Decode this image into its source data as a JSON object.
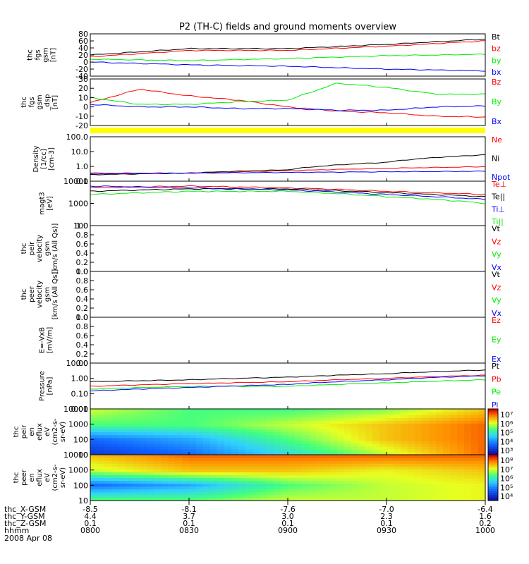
{
  "title": "P2 (TH-C) fields and ground moments overview",
  "date_label": "2008 Apr 08",
  "bottom_axis": {
    "rows": [
      {
        "label": "thc_X-GSM",
        "values": [
          "-8.5",
          "-8.1",
          "-7.6",
          "-7.0",
          "-6.4"
        ]
      },
      {
        "label": "thc_Y-GSM",
        "values": [
          "4.4",
          "3.7",
          "3.0",
          "2.3",
          "1.6"
        ]
      },
      {
        "label": "thc_Z-GSM",
        "values": [
          "0.1",
          "0.1",
          "0.1",
          "0.1",
          "0.2"
        ]
      },
      {
        "label": "hhmm",
        "values": [
          "0800",
          "0830",
          "0900",
          "0930",
          "1000"
        ]
      }
    ]
  },
  "colors": {
    "black": "#000000",
    "red": "#ff0000",
    "green": "#00ee00",
    "blue": "#0000ff",
    "yellow": "#ffff00"
  },
  "panels": [
    {
      "id": "p1",
      "ylabel": [
        "thc",
        "fgs",
        "gsm",
        "[nT]"
      ],
      "scale": "linear",
      "ylim": [
        -40,
        80
      ],
      "ticks": [
        "80",
        "60",
        "40",
        "20",
        "0",
        "-20",
        "-40"
      ],
      "legend": [
        {
          "text": "Bt",
          "color": "black"
        },
        {
          "text": "bz",
          "color": "red"
        },
        {
          "text": "by",
          "color": "green"
        },
        {
          "text": "bx",
          "color": "blue"
        }
      ]
    },
    {
      "id": "p2",
      "ylabel": [
        "thc",
        "fgs",
        "gsm",
        "_dsp",
        "[nT]"
      ],
      "scale": "linear",
      "ylim": [
        -25,
        30
      ],
      "ticks": [
        "30",
        "20",
        "10",
        "0",
        "-10",
        "-20"
      ],
      "legend": [
        {
          "text": "Bz",
          "color": "red"
        },
        {
          "text": "By",
          "color": "green"
        },
        {
          "text": "Bx",
          "color": "blue"
        }
      ]
    },
    {
      "id": "p3",
      "ylabel": [
        "Density",
        "[1/cc]",
        "[cm-3]"
      ],
      "scale": "log",
      "ylim": [
        0.1,
        200
      ],
      "ticks": [
        "100.0",
        "10.0",
        "1.0",
        "0.1"
      ],
      "legend": [
        {
          "text": "Ne",
          "color": "red"
        },
        {
          "text": "Ni",
          "color": "black"
        },
        {
          "text": "Npot",
          "color": "blue"
        }
      ]
    },
    {
      "id": "p4",
      "ylabel": [
        "magt3",
        "[eV]"
      ],
      "scale": "log",
      "ylim": [
        100,
        10000
      ],
      "ticks": [
        "10000",
        "1000",
        "100"
      ],
      "legend": [
        {
          "text": "Te⊥",
          "color": "red"
        },
        {
          "text": "Te||",
          "color": "black"
        },
        {
          "text": "Ti⊥",
          "color": "blue"
        },
        {
          "text": "Ti||",
          "color": "green"
        }
      ]
    },
    {
      "id": "p5",
      "ylabel": [
        "thc",
        "peir",
        "velocity",
        "gsm",
        "[km/s (All Qs)]"
      ],
      "scale": "linear",
      "ylim": [
        0,
        1
      ],
      "ticks": [
        "1.0",
        "0.8",
        "0.6",
        "0.4",
        "0.2",
        "0.0"
      ],
      "legend": [
        {
          "text": "Vt",
          "color": "black"
        },
        {
          "text": "Vz",
          "color": "red"
        },
        {
          "text": "Vy",
          "color": "green"
        },
        {
          "text": "Vx",
          "color": "blue"
        }
      ]
    },
    {
      "id": "p6",
      "ylabel": [
        "thc",
        "peer",
        "velocity",
        "gsm",
        "[km/s (All Qs)]"
      ],
      "scale": "linear",
      "ylim": [
        0,
        1
      ],
      "ticks": [
        "1.0",
        "0.8",
        "0.6",
        "0.4",
        "0.2",
        "0.0"
      ],
      "legend": [
        {
          "text": "Vt",
          "color": "black"
        },
        {
          "text": "Vz",
          "color": "red"
        },
        {
          "text": "Vy",
          "color": "green"
        },
        {
          "text": "Vx",
          "color": "blue"
        }
      ]
    },
    {
      "id": "p7",
      "ylabel": [
        "E=-VxB",
        "[mV/m]"
      ],
      "scale": "linear",
      "ylim": [
        0,
        1
      ],
      "ticks": [
        "1.0",
        "0.8",
        "0.6",
        "0.4",
        "0.2",
        "0.0"
      ],
      "legend": [
        {
          "text": "Ez",
          "color": "red"
        },
        {
          "text": "Ey",
          "color": "green"
        },
        {
          "text": "Ex",
          "color": "blue"
        }
      ]
    },
    {
      "id": "p8",
      "ylabel": [
        "Pressure",
        "[nPa]"
      ],
      "scale": "log",
      "ylim": [
        0.01,
        10
      ],
      "ticks": [
        "10.00",
        "1.00",
        "0.10",
        "0.01"
      ],
      "legend": [
        {
          "text": "Pt",
          "color": "black"
        },
        {
          "text": "Pb",
          "color": "red"
        },
        {
          "text": "Pe",
          "color": "green"
        },
        {
          "text": "Pi",
          "color": "blue"
        }
      ]
    },
    {
      "id": "p9",
      "ylabel": [
        "thc",
        "peir",
        "en",
        "eflux",
        "eV",
        "(cm2-s-",
        "sr-eV)"
      ],
      "scale": "log",
      "ylim": [
        5,
        30000
      ],
      "ticks": [
        "10000",
        "1000",
        "100",
        "10"
      ],
      "colorbar": [
        "10⁷",
        "10⁶",
        "10⁵",
        "10⁴",
        "10³"
      ]
    },
    {
      "id": "p10",
      "ylabel": [
        "thc",
        "peer",
        "en",
        "eflux",
        "eV",
        "(cm2-s-",
        "sr-eV)"
      ],
      "scale": "log",
      "ylim": [
        5,
        30000
      ],
      "ticks": [
        "10000",
        "1000",
        "100",
        "10"
      ],
      "colorbar": [
        "10⁸",
        "10⁷",
        "10⁶",
        "10⁵",
        "10⁴"
      ]
    }
  ],
  "chart_data": [
    {
      "type": "line",
      "panel": "p1",
      "x_hours": [
        8.0,
        8.5,
        9.0,
        9.5,
        10.0
      ],
      "series": [
        {
          "name": "Bt",
          "values": [
            20,
            38,
            38,
            50,
            65
          ]
        },
        {
          "name": "bz",
          "values": [
            15,
            33,
            33,
            45,
            60
          ]
        },
        {
          "name": "by",
          "values": [
            8,
            4,
            10,
            18,
            22
          ]
        },
        {
          "name": "bx",
          "values": [
            0,
            -8,
            -12,
            -20,
            -25
          ]
        }
      ]
    },
    {
      "type": "line",
      "panel": "p2",
      "x_hours": [
        8.0,
        8.25,
        8.5,
        8.75,
        9.0,
        9.25,
        9.5,
        9.75,
        10.0
      ],
      "series": [
        {
          "name": "Bz",
          "values": [
            2,
            18,
            10,
            5,
            -3,
            -8,
            -10,
            -14,
            -15
          ]
        },
        {
          "name": "By",
          "values": [
            8,
            0,
            0,
            3,
            5,
            25,
            20,
            12,
            12
          ]
        },
        {
          "name": "Bx",
          "values": [
            0,
            -3,
            -3,
            -5,
            -5,
            -7,
            -7,
            -3,
            -2
          ]
        }
      ]
    },
    {
      "type": "line",
      "panel": "p3",
      "x_hours": [
        8.0,
        8.5,
        9.0,
        9.5,
        10.0
      ],
      "series": [
        {
          "name": "Ne",
          "values": [
            0.4,
            0.4,
            0.6,
            0.9,
            1.2
          ]
        },
        {
          "name": "Ni",
          "values": [
            0.3,
            0.4,
            0.7,
            2.5,
            9.0
          ]
        },
        {
          "name": "Npot",
          "values": [
            0.35,
            0.4,
            0.45,
            0.5,
            0.55
          ]
        }
      ]
    },
    {
      "type": "line",
      "panel": "p4",
      "x_hours": [
        8.0,
        8.5,
        9.0,
        9.5,
        10.0
      ],
      "series": [
        {
          "name": "Te⊥",
          "values": [
            5000,
            6000,
            5000,
            3500,
            2500
          ]
        },
        {
          "name": "Te||",
          "values": [
            3500,
            4500,
            4500,
            3000,
            2000
          ]
        },
        {
          "name": "Ti⊥",
          "values": [
            6000,
            5000,
            4000,
            2500,
            1500
          ]
        },
        {
          "name": "Ti||",
          "values": [
            2500,
            3500,
            3500,
            2000,
            1000
          ]
        }
      ]
    },
    {
      "type": "line",
      "panel": "p8",
      "x_hours": [
        8.0,
        8.5,
        9.0,
        9.5,
        10.0
      ],
      "series": [
        {
          "name": "Pt",
          "values": [
            0.6,
            0.8,
            1.2,
            2.0,
            3.5
          ]
        },
        {
          "name": "Pb",
          "values": [
            0.3,
            0.45,
            0.6,
            1.0,
            1.6
          ]
        },
        {
          "name": "Pe",
          "values": [
            0.2,
            0.3,
            0.3,
            0.5,
            0.8
          ]
        },
        {
          "name": "Pi",
          "values": [
            0.15,
            0.25,
            0.4,
            0.8,
            1.5
          ]
        }
      ]
    },
    {
      "type": "heatmap",
      "panel": "p9",
      "x_hours": [
        8.0,
        8.5,
        9.0,
        9.5,
        10.0
      ],
      "y_energy_eV": [
        10,
        100,
        1000,
        10000
      ],
      "log10_values": [
        [
          3.5,
          4.0,
          5.0,
          6.0,
          7.0
        ],
        [
          4.0,
          4.5,
          5.5,
          6.5,
          7.0
        ],
        [
          5.5,
          5.5,
          6.0,
          6.5,
          7.0
        ],
        [
          6.0,
          5.5,
          5.5,
          5.8,
          6.5
        ]
      ]
    },
    {
      "type": "heatmap",
      "panel": "p10",
      "x_hours": [
        8.0,
        8.5,
        9.0,
        9.5,
        10.0
      ],
      "y_energy_eV": [
        10,
        100,
        1000,
        10000
      ],
      "log10_values": [
        [
          6.5,
          6.5,
          7.0,
          7.0,
          7.2
        ],
        [
          5.0,
          5.5,
          6.5,
          7.0,
          7.2
        ],
        [
          7.0,
          7.5,
          7.5,
          7.2,
          7.5
        ],
        [
          7.5,
          8.0,
          8.0,
          8.0,
          8.0
        ]
      ]
    }
  ]
}
